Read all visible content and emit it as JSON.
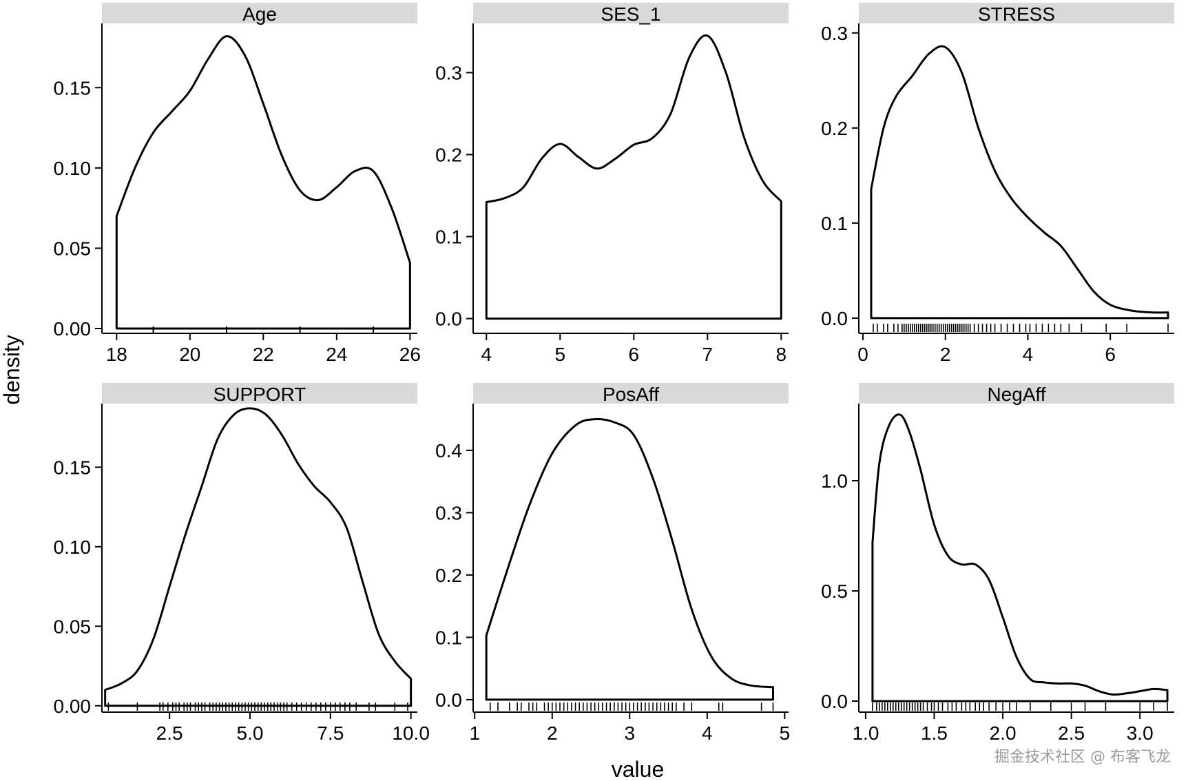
{
  "chart_data": {
    "type": "area",
    "xlabel": "value",
    "ylabel": "density",
    "colors": {
      "strip": "#d9d9d9",
      "line": "#000000",
      "text": "#000000"
    },
    "watermark": "掘金技术社区 @ 布客飞龙",
    "panels": [
      {
        "title": "Age",
        "xlim": [
          17.6,
          26.2
        ],
        "ylim": [
          -0.003,
          0.19
        ],
        "xticks": [
          18,
          20,
          22,
          24,
          26
        ],
        "xtick_labels": [
          "18",
          "20",
          "22",
          "24",
          "26"
        ],
        "minor_xticks": [
          19,
          21,
          23,
          25
        ],
        "yticks": [
          0,
          0.05,
          0.1,
          0.15
        ],
        "ytick_labels": [
          "0.00",
          "0.05",
          "0.10",
          "0.15"
        ],
        "x": [
          18,
          18.5,
          19,
          19.5,
          20,
          20.5,
          21,
          21.5,
          22,
          22.5,
          23,
          23.5,
          24,
          24.5,
          25,
          25.5,
          26
        ],
        "y": [
          0.07,
          0.1,
          0.122,
          0.135,
          0.148,
          0.168,
          0.182,
          0.17,
          0.14,
          0.108,
          0.086,
          0.08,
          0.088,
          0.098,
          0.098,
          0.075,
          0.041
        ],
        "rug": []
      },
      {
        "title": "SES_1",
        "xlim": [
          3.82,
          8.1
        ],
        "ylim": [
          -0.018,
          0.36
        ],
        "xticks": [
          4,
          5,
          6,
          7,
          8
        ],
        "xtick_labels": [
          "4",
          "5",
          "6",
          "7",
          "8"
        ],
        "minor_xticks": [],
        "yticks": [
          0,
          0.1,
          0.2,
          0.3
        ],
        "ytick_labels": [
          "0.0",
          "0.1",
          "0.2",
          "0.3"
        ],
        "x": [
          4,
          4.25,
          4.5,
          4.75,
          5,
          5.25,
          5.5,
          5.75,
          6,
          6.25,
          6.5,
          6.75,
          7,
          7.25,
          7.5,
          7.75,
          8
        ],
        "y": [
          0.142,
          0.147,
          0.16,
          0.195,
          0.213,
          0.197,
          0.183,
          0.195,
          0.212,
          0.22,
          0.25,
          0.318,
          0.345,
          0.3,
          0.22,
          0.168,
          0.143
        ],
        "rug": []
      },
      {
        "title": "STRESS",
        "xlim": [
          -0.1,
          7.55
        ],
        "ylim": [
          -0.016,
          0.31
        ],
        "xticks": [
          0,
          2,
          4,
          6
        ],
        "xtick_labels": [
          "0",
          "2",
          "4",
          "6"
        ],
        "minor_xticks": [],
        "yticks": [
          0,
          0.1,
          0.2,
          0.3
        ],
        "ytick_labels": [
          "0.0",
          "0.1",
          "0.2",
          "0.3"
        ],
        "x": [
          0.2,
          0.5,
          0.8,
          1.2,
          1.6,
          2.0,
          2.4,
          2.8,
          3.2,
          3.6,
          4.0,
          4.4,
          4.8,
          5.2,
          5.6,
          6.0,
          6.5,
          7.0,
          7.4
        ],
        "y": [
          0.136,
          0.2,
          0.233,
          0.255,
          0.278,
          0.285,
          0.258,
          0.2,
          0.155,
          0.126,
          0.106,
          0.09,
          0.076,
          0.052,
          0.028,
          0.014,
          0.008,
          0.006,
          0.006
        ],
        "rug": [
          0.25,
          0.35,
          0.5,
          0.6,
          0.75,
          0.85,
          0.95,
          1.0,
          1.05,
          1.1,
          1.15,
          1.2,
          1.25,
          1.3,
          1.35,
          1.4,
          1.45,
          1.5,
          1.55,
          1.6,
          1.65,
          1.7,
          1.75,
          1.8,
          1.85,
          1.9,
          1.95,
          2.0,
          2.05,
          2.1,
          2.15,
          2.2,
          2.25,
          2.3,
          2.35,
          2.4,
          2.45,
          2.5,
          2.55,
          2.6,
          2.7,
          2.8,
          2.9,
          3.0,
          3.1,
          3.2,
          3.35,
          3.5,
          3.65,
          3.8,
          3.95,
          4.05,
          4.2,
          4.35,
          4.5,
          4.65,
          4.8,
          5.0,
          5.3,
          5.9,
          6.4,
          7.4
        ],
        "rug_extents": [
          0.2,
          7.4
        ]
      },
      {
        "title": "SUPPORT",
        "xlim": [
          0.4,
          10.2
        ],
        "ylim": [
          -0.004,
          0.19
        ],
        "xticks": [
          2.5,
          5.0,
          7.5,
          10.0
        ],
        "xtick_labels": [
          "2.5",
          "5.0",
          "7.5",
          "10.0"
        ],
        "minor_xticks": [],
        "yticks": [
          0,
          0.05,
          0.1,
          0.15
        ],
        "ytick_labels": [
          "0.00",
          "0.05",
          "0.10",
          "0.15"
        ],
        "x": [
          0.5,
          1.0,
          1.5,
          2.0,
          2.5,
          3.0,
          3.5,
          4.0,
          4.5,
          5.0,
          5.5,
          6.0,
          6.5,
          7.0,
          7.5,
          8.0,
          8.5,
          9.0,
          9.5,
          10.0
        ],
        "y": [
          0.01,
          0.014,
          0.022,
          0.042,
          0.075,
          0.108,
          0.138,
          0.168,
          0.183,
          0.187,
          0.183,
          0.17,
          0.152,
          0.138,
          0.128,
          0.112,
          0.078,
          0.045,
          0.028,
          0.017
        ],
        "rug": [
          0.6,
          1.5,
          2.2,
          2.3,
          2.45,
          2.6,
          2.7,
          2.8,
          2.95,
          3.05,
          3.15,
          3.3,
          3.4,
          3.5,
          3.6,
          3.75,
          3.85,
          3.95,
          4.05,
          4.15,
          4.25,
          4.35,
          4.45,
          4.55,
          4.65,
          4.75,
          4.85,
          4.95,
          5.05,
          5.15,
          5.25,
          5.35,
          5.45,
          5.55,
          5.65,
          5.75,
          5.85,
          5.95,
          6.05,
          6.15,
          6.3,
          6.45,
          6.6,
          6.75,
          6.9,
          7.05,
          7.2,
          7.35,
          7.5,
          7.65,
          7.8,
          7.95,
          8.1,
          8.3,
          8.7,
          8.9,
          9.5,
          9.9
        ],
        "rug_extents": [
          0.5,
          10.0
        ]
      },
      {
        "title": "PosAff",
        "xlim": [
          0.98,
          5.05
        ],
        "ylim": [
          -0.02,
          0.475
        ],
        "xticks": [
          1,
          2,
          3,
          4,
          5
        ],
        "xtick_labels": [
          "1",
          "2",
          "3",
          "4",
          "5"
        ],
        "minor_xticks": [],
        "yticks": [
          0,
          0.1,
          0.2,
          0.3,
          0.4
        ],
        "ytick_labels": [
          "0.0",
          "0.1",
          "0.2",
          "0.3",
          "0.4"
        ],
        "x": [
          1.15,
          1.4,
          1.7,
          2.0,
          2.3,
          2.55,
          2.8,
          3.05,
          3.3,
          3.55,
          3.8,
          4.05,
          4.3,
          4.55,
          4.85
        ],
        "y": [
          0.103,
          0.2,
          0.31,
          0.395,
          0.44,
          0.45,
          0.445,
          0.425,
          0.355,
          0.255,
          0.145,
          0.07,
          0.035,
          0.023,
          0.02
        ],
        "rug": [
          1.2,
          1.3,
          1.45,
          1.55,
          1.6,
          1.7,
          1.75,
          1.8,
          1.9,
          1.95,
          2.0,
          2.05,
          2.1,
          2.15,
          2.2,
          2.25,
          2.3,
          2.35,
          2.4,
          2.45,
          2.5,
          2.55,
          2.6,
          2.65,
          2.7,
          2.75,
          2.8,
          2.85,
          2.9,
          2.95,
          3.0,
          3.05,
          3.1,
          3.15,
          3.2,
          3.25,
          3.3,
          3.35,
          3.4,
          3.45,
          3.5,
          3.55,
          3.6,
          3.7,
          3.8,
          4.15,
          4.2,
          4.7,
          4.85
        ],
        "rug_extents": [
          1.15,
          4.85
        ]
      },
      {
        "title": "NegAff",
        "xlim": [
          0.95,
          3.25
        ],
        "ylim": [
          -0.05,
          1.35
        ],
        "xticks": [
          1.0,
          1.5,
          2.0,
          2.5,
          3.0
        ],
        "xtick_labels": [
          "1.0",
          "1.5",
          "2.0",
          "2.5",
          "3.0"
        ],
        "minor_xticks": [],
        "yticks": [
          0,
          0.5,
          1.0
        ],
        "ytick_labels": [
          "0.0",
          "0.5",
          "1.0"
        ],
        "x": [
          1.05,
          1.1,
          1.17,
          1.25,
          1.32,
          1.4,
          1.5,
          1.6,
          1.7,
          1.8,
          1.9,
          2.0,
          2.1,
          2.2,
          2.3,
          2.4,
          2.5,
          2.6,
          2.7,
          2.8,
          2.9,
          3.0,
          3.1,
          3.2
        ],
        "y": [
          0.72,
          1.08,
          1.25,
          1.3,
          1.22,
          1.05,
          0.8,
          0.66,
          0.62,
          0.62,
          0.55,
          0.38,
          0.2,
          0.1,
          0.085,
          0.08,
          0.08,
          0.07,
          0.045,
          0.03,
          0.035,
          0.045,
          0.055,
          0.05
        ],
        "rug": [
          1.05,
          1.08,
          1.1,
          1.12,
          1.14,
          1.16,
          1.18,
          1.2,
          1.22,
          1.24,
          1.26,
          1.28,
          1.3,
          1.32,
          1.34,
          1.36,
          1.38,
          1.4,
          1.42,
          1.45,
          1.48,
          1.5,
          1.53,
          1.56,
          1.6,
          1.63,
          1.66,
          1.7,
          1.73,
          1.76,
          1.8,
          1.83,
          1.86,
          1.9,
          1.95,
          2.0,
          2.05,
          2.1,
          2.2,
          2.35,
          2.5,
          2.6,
          2.75,
          3.0,
          3.1,
          3.2
        ],
        "rug_extents": [
          1.05,
          3.2
        ]
      }
    ]
  }
}
